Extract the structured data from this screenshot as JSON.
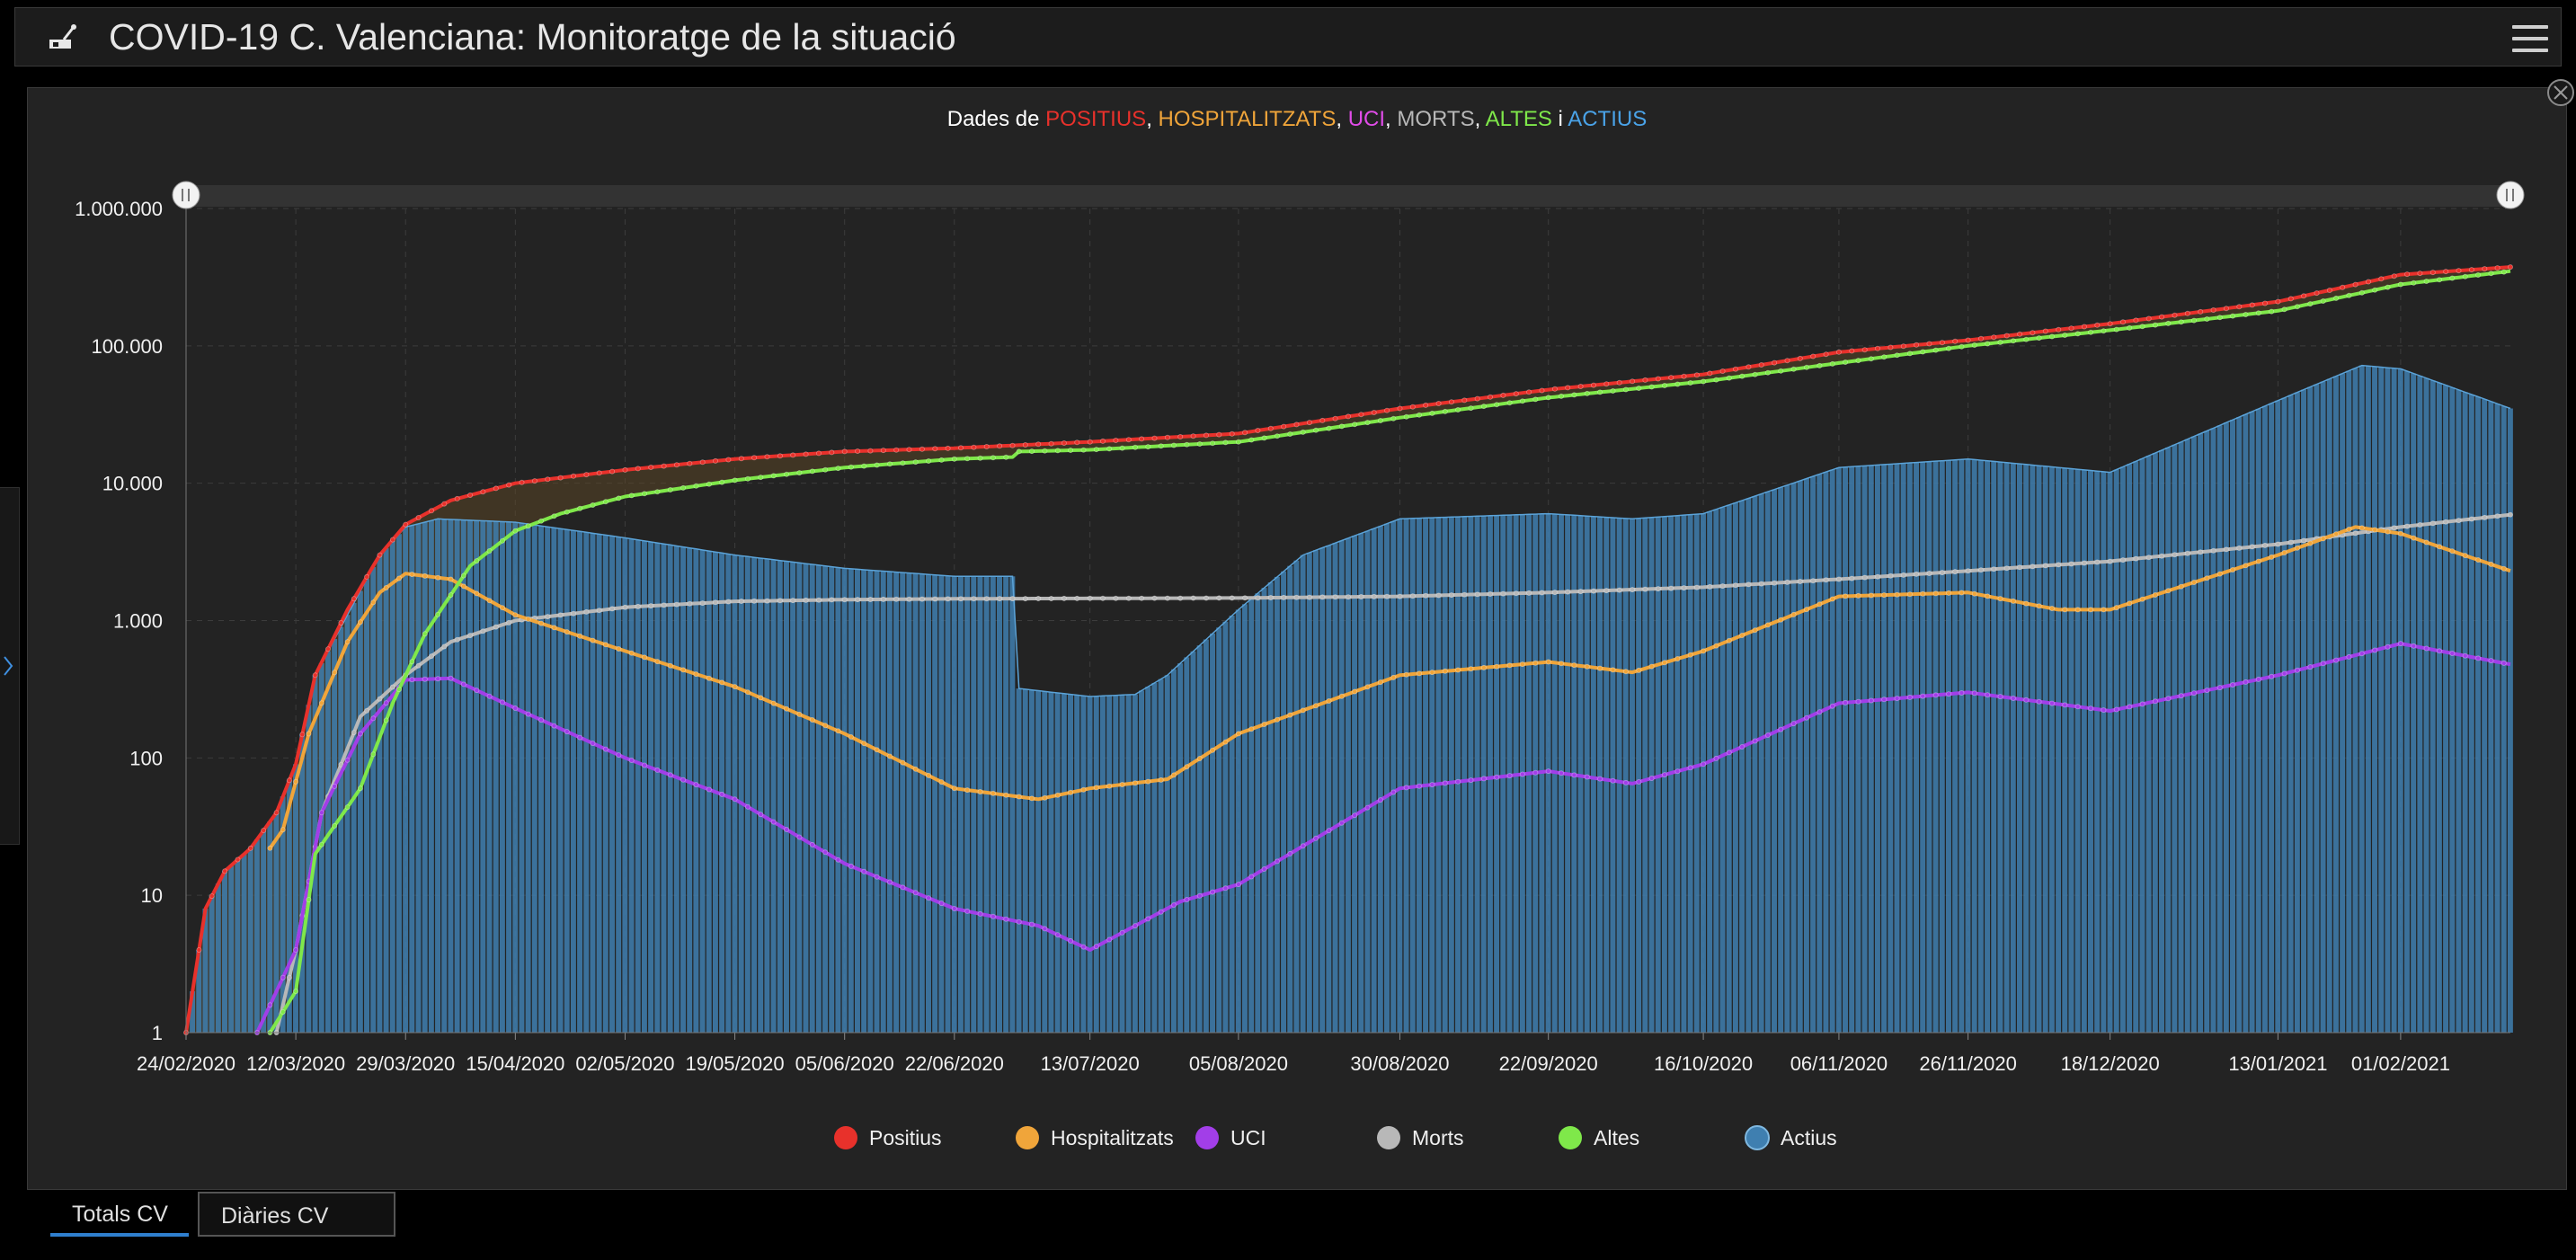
{
  "header": {
    "title": "COVID-19 C. Valenciana: Monitoratge de la situació",
    "logo_icon": "scale-icon",
    "menu_icon": "hamburger-menu-icon"
  },
  "tabs": [
    {
      "label": "Totals CV",
      "active": true
    },
    {
      "label": "Diàries CV",
      "active": false
    }
  ],
  "colors": {
    "positius": "#e8312b",
    "hospitalitzats": "#f0a53a",
    "uci": "#a23ee8",
    "morts": "#b8b8b8",
    "altes": "#7fe84a",
    "actius": "#3f7fb0"
  },
  "chart_data": {
    "type": "line",
    "title": {
      "parts": [
        {
          "text": "Dades de ",
          "color": "#ffffff"
        },
        {
          "text": "POSITIUS",
          "color": "#e8312b"
        },
        {
          "text": ", ",
          "color": "#ffffff"
        },
        {
          "text": "HOSPITALITZATS",
          "color": "#f0a53a"
        },
        {
          "text": ", ",
          "color": "#ffffff"
        },
        {
          "text": "UCI",
          "color": "#e04ce8"
        },
        {
          "text": ", ",
          "color": "#ffffff"
        },
        {
          "text": "MORTS",
          "color": "#b8b8b8"
        },
        {
          "text": ", ",
          "color": "#ffffff"
        },
        {
          "text": "ALTES",
          "color": "#7fe84a"
        },
        {
          "text": " i ",
          "color": "#ffffff"
        },
        {
          "text": "ACTIUS",
          "color": "#4aa3e8"
        }
      ]
    },
    "y_scale": "log",
    "ylim": [
      1,
      1000000
    ],
    "y_ticks": [
      {
        "value": 1,
        "label": "1"
      },
      {
        "value": 10,
        "label": "10"
      },
      {
        "value": 100,
        "label": "100"
      },
      {
        "value": 1000,
        "label": "1.000"
      },
      {
        "value": 10000,
        "label": "10.000"
      },
      {
        "value": 100000,
        "label": "100.000"
      },
      {
        "value": 1000000,
        "label": "1.000.000"
      }
    ],
    "xlim": [
      "2020-02-24",
      "2021-02-18"
    ],
    "x_ticks": [
      {
        "date": "2020-02-24",
        "label": "24/02/2020"
      },
      {
        "date": "2020-03-12",
        "label": "12/03/2020"
      },
      {
        "date": "2020-03-29",
        "label": "29/03/2020"
      },
      {
        "date": "2020-04-15",
        "label": "15/04/2020"
      },
      {
        "date": "2020-05-02",
        "label": "02/05/2020"
      },
      {
        "date": "2020-05-19",
        "label": "19/05/2020"
      },
      {
        "date": "2020-06-05",
        "label": "05/06/2020"
      },
      {
        "date": "2020-06-22",
        "label": "22/06/2020"
      },
      {
        "date": "2020-07-13",
        "label": "13/07/2020"
      },
      {
        "date": "2020-08-05",
        "label": "05/08/2020"
      },
      {
        "date": "2020-08-30",
        "label": "30/08/2020"
      },
      {
        "date": "2020-09-22",
        "label": "22/09/2020"
      },
      {
        "date": "2020-10-16",
        "label": "16/10/2020"
      },
      {
        "date": "2020-11-06",
        "label": "06/11/2020"
      },
      {
        "date": "2020-11-26",
        "label": "26/11/2020"
      },
      {
        "date": "2020-12-18",
        "label": "18/12/2020"
      },
      {
        "date": "2021-01-13",
        "label": "13/01/2021"
      },
      {
        "date": "2021-02-01",
        "label": "01/02/2021"
      }
    ],
    "grid": true,
    "legend_position": "bottom-center",
    "series": [
      {
        "name": "Positius",
        "key": "positius",
        "style": "line",
        "points": [
          [
            "2020-02-24",
            1
          ],
          [
            "2020-02-27",
            8
          ],
          [
            "2020-03-01",
            15
          ],
          [
            "2020-03-05",
            22
          ],
          [
            "2020-03-09",
            40
          ],
          [
            "2020-03-12",
            90
          ],
          [
            "2020-03-15",
            400
          ],
          [
            "2020-03-20",
            1200
          ],
          [
            "2020-03-25",
            3000
          ],
          [
            "2020-03-29",
            5000
          ],
          [
            "2020-04-05",
            7500
          ],
          [
            "2020-04-15",
            10000
          ],
          [
            "2020-05-02",
            12500
          ],
          [
            "2020-05-19",
            15000
          ],
          [
            "2020-06-05",
            17000
          ],
          [
            "2020-06-22",
            18000
          ],
          [
            "2020-07-13",
            20000
          ],
          [
            "2020-08-05",
            23000
          ],
          [
            "2020-08-30",
            35000
          ],
          [
            "2020-09-22",
            48000
          ],
          [
            "2020-10-16",
            62000
          ],
          [
            "2020-11-06",
            90000
          ],
          [
            "2020-11-26",
            110000
          ],
          [
            "2020-12-18",
            145000
          ],
          [
            "2021-01-13",
            210000
          ],
          [
            "2021-02-01",
            330000
          ],
          [
            "2021-02-18",
            375000
          ]
        ]
      },
      {
        "name": "Hospitalitzats",
        "key": "hospitalitzats",
        "style": "line",
        "points": [
          [
            "2020-03-08",
            22
          ],
          [
            "2020-03-10",
            30
          ],
          [
            "2020-03-14",
            150
          ],
          [
            "2020-03-20",
            700
          ],
          [
            "2020-03-25",
            1600
          ],
          [
            "2020-03-29",
            2200
          ],
          [
            "2020-04-05",
            2000
          ],
          [
            "2020-04-15",
            1100
          ],
          [
            "2020-05-02",
            600
          ],
          [
            "2020-05-19",
            330
          ],
          [
            "2020-06-05",
            150
          ],
          [
            "2020-06-22",
            60
          ],
          [
            "2020-07-05",
            50
          ],
          [
            "2020-07-13",
            60
          ],
          [
            "2020-07-25",
            70
          ],
          [
            "2020-08-05",
            150
          ],
          [
            "2020-08-30",
            400
          ],
          [
            "2020-09-22",
            500
          ],
          [
            "2020-10-05",
            420
          ],
          [
            "2020-10-16",
            600
          ],
          [
            "2020-11-06",
            1500
          ],
          [
            "2020-11-26",
            1600
          ],
          [
            "2020-12-10",
            1200
          ],
          [
            "2020-12-18",
            1200
          ],
          [
            "2021-01-13",
            3000
          ],
          [
            "2021-01-25",
            4800
          ],
          [
            "2021-02-01",
            4300
          ],
          [
            "2021-02-18",
            2300
          ]
        ]
      },
      {
        "name": "UCI",
        "key": "uci",
        "style": "line",
        "points": [
          [
            "2020-03-06",
            1
          ],
          [
            "2020-03-09",
            2
          ],
          [
            "2020-03-12",
            4
          ],
          [
            "2020-03-16",
            40
          ],
          [
            "2020-03-22",
            150
          ],
          [
            "2020-03-29",
            370
          ],
          [
            "2020-04-05",
            380
          ],
          [
            "2020-04-15",
            230
          ],
          [
            "2020-05-02",
            100
          ],
          [
            "2020-05-19",
            50
          ],
          [
            "2020-06-05",
            17
          ],
          [
            "2020-06-22",
            8
          ],
          [
            "2020-07-05",
            6
          ],
          [
            "2020-07-13",
            4
          ],
          [
            "2020-07-20",
            6
          ],
          [
            "2020-07-27",
            9
          ],
          [
            "2020-08-05",
            12
          ],
          [
            "2020-08-30",
            60
          ],
          [
            "2020-09-22",
            80
          ],
          [
            "2020-10-05",
            65
          ],
          [
            "2020-10-16",
            90
          ],
          [
            "2020-11-06",
            250
          ],
          [
            "2020-11-26",
            300
          ],
          [
            "2020-12-18",
            220
          ],
          [
            "2021-01-13",
            400
          ],
          [
            "2021-02-01",
            680
          ],
          [
            "2021-02-18",
            480
          ]
        ]
      },
      {
        "name": "Morts",
        "key": "morts",
        "style": "line",
        "points": [
          [
            "2020-03-09",
            1
          ],
          [
            "2020-03-12",
            4
          ],
          [
            "2020-03-16",
            40
          ],
          [
            "2020-03-22",
            200
          ],
          [
            "2020-03-29",
            400
          ],
          [
            "2020-04-05",
            700
          ],
          [
            "2020-04-15",
            1000
          ],
          [
            "2020-05-02",
            1250
          ],
          [
            "2020-05-19",
            1380
          ],
          [
            "2020-06-05",
            1420
          ],
          [
            "2020-06-22",
            1440
          ],
          [
            "2020-07-13",
            1450
          ],
          [
            "2020-08-05",
            1460
          ],
          [
            "2020-08-30",
            1500
          ],
          [
            "2020-09-22",
            1600
          ],
          [
            "2020-10-16",
            1750
          ],
          [
            "2020-11-06",
            2000
          ],
          [
            "2020-11-26",
            2300
          ],
          [
            "2020-12-18",
            2700
          ],
          [
            "2021-01-13",
            3600
          ],
          [
            "2021-02-01",
            4800
          ],
          [
            "2021-02-18",
            5900
          ]
        ]
      },
      {
        "name": "Altes",
        "key": "altes",
        "style": "line",
        "points": [
          [
            "2020-03-08",
            1
          ],
          [
            "2020-03-12",
            2
          ],
          [
            "2020-03-15",
            20
          ],
          [
            "2020-03-22",
            60
          ],
          [
            "2020-03-27",
            250
          ],
          [
            "2020-04-01",
            800
          ],
          [
            "2020-04-08",
            2500
          ],
          [
            "2020-04-15",
            4500
          ],
          [
            "2020-04-22",
            6000
          ],
          [
            "2020-05-02",
            8000
          ],
          [
            "2020-05-19",
            10500
          ],
          [
            "2020-06-05",
            13000
          ],
          [
            "2020-06-22",
            15000
          ],
          [
            "2020-07-01",
            15500
          ],
          [
            "2020-07-02",
            17000
          ],
          [
            "2020-07-13",
            17500
          ],
          [
            "2020-08-05",
            20000
          ],
          [
            "2020-08-30",
            30000
          ],
          [
            "2020-09-22",
            42000
          ],
          [
            "2020-10-16",
            55000
          ],
          [
            "2020-11-06",
            75000
          ],
          [
            "2020-11-26",
            100000
          ],
          [
            "2020-12-18",
            130000
          ],
          [
            "2021-01-13",
            180000
          ],
          [
            "2021-02-01",
            280000
          ],
          [
            "2021-02-18",
            350000
          ]
        ]
      },
      {
        "name": "Actius",
        "key": "actius",
        "style": "bar",
        "points": [
          [
            "2020-02-24",
            1
          ],
          [
            "2020-02-27",
            8
          ],
          [
            "2020-03-01",
            15
          ],
          [
            "2020-03-05",
            22
          ],
          [
            "2020-03-09",
            40
          ],
          [
            "2020-03-12",
            90
          ],
          [
            "2020-03-15",
            400
          ],
          [
            "2020-03-20",
            1100
          ],
          [
            "2020-03-25",
            3000
          ],
          [
            "2020-03-29",
            4800
          ],
          [
            "2020-04-03",
            5500
          ],
          [
            "2020-04-15",
            5200
          ],
          [
            "2020-05-02",
            4000
          ],
          [
            "2020-05-19",
            3000
          ],
          [
            "2020-06-05",
            2400
          ],
          [
            "2020-06-22",
            2100
          ],
          [
            "2020-07-01",
            2100
          ],
          [
            "2020-07-02",
            320
          ],
          [
            "2020-07-13",
            280
          ],
          [
            "2020-07-20",
            290
          ],
          [
            "2020-07-25",
            400
          ],
          [
            "2020-08-05",
            1200
          ],
          [
            "2020-08-15",
            3000
          ],
          [
            "2020-08-30",
            5500
          ],
          [
            "2020-09-22",
            6000
          ],
          [
            "2020-10-05",
            5500
          ],
          [
            "2020-10-16",
            6000
          ],
          [
            "2020-11-06",
            13000
          ],
          [
            "2020-11-26",
            15000
          ],
          [
            "2020-12-18",
            12000
          ],
          [
            "2021-01-13",
            40000
          ],
          [
            "2021-01-26",
            72000
          ],
          [
            "2021-02-01",
            68000
          ],
          [
            "2021-02-18",
            35000
          ]
        ]
      }
    ]
  }
}
